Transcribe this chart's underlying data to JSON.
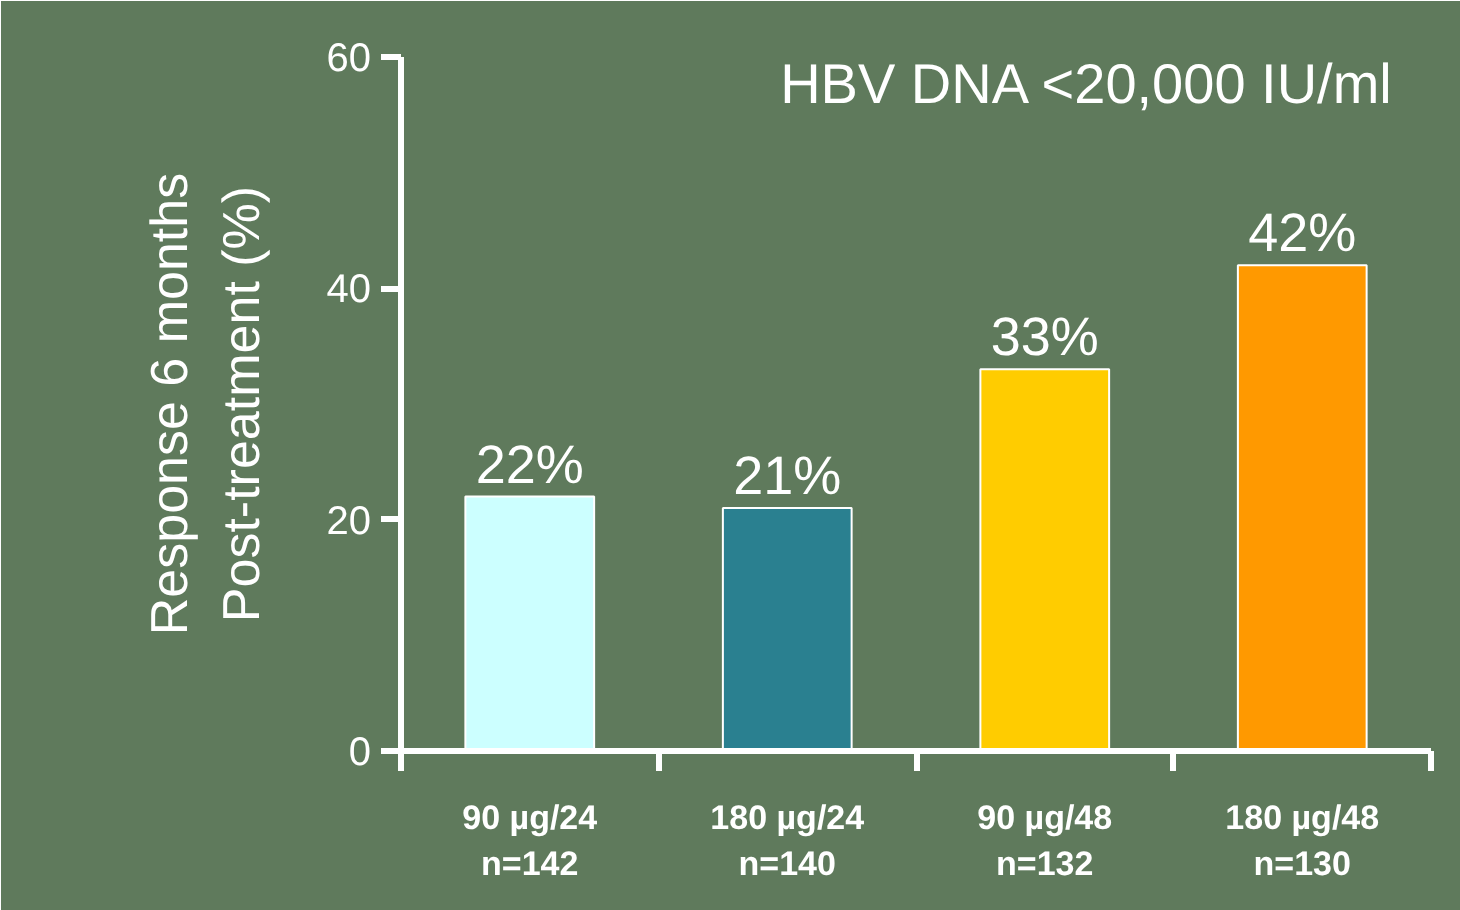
{
  "chart_data": {
    "type": "bar",
    "title": "HBV  DNA <20,000 IU/ml",
    "ylabel": "Response 6 months\nPost-treatment (%)",
    "categories": [
      "90 µg/24\nn=142",
      "180 µg/24\nn=140",
      "90 µg/48\nn=132",
      "180 µg/48\nn=130"
    ],
    "values": [
      22,
      21,
      33,
      42
    ],
    "value_labels": [
      "22%",
      "21%",
      "33%",
      "42%"
    ],
    "colors": [
      "#ccffff",
      "#2a8090",
      "#ffcc00",
      "#ff9900"
    ],
    "ylim": [
      0,
      60
    ],
    "yticks": [
      0,
      20,
      40,
      60
    ],
    "grid": false
  }
}
